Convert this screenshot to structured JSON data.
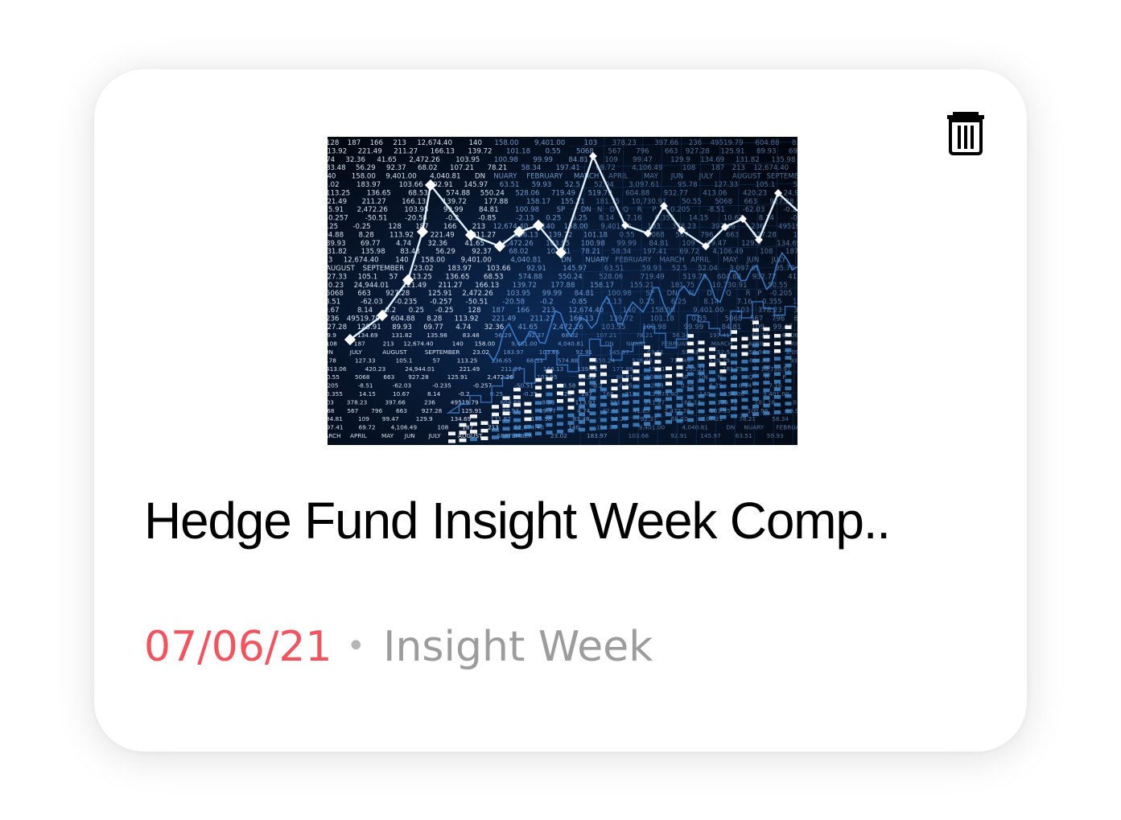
{
  "card": {
    "title": "Hedge Fund Insight Week Comp..",
    "date": "07/06/21",
    "separator": "•",
    "source": "Insight Week",
    "date_color": "#f4535e",
    "source_color": "#9c9c9c"
  },
  "actions": {
    "delete_icon": "trash-icon"
  },
  "thumbnail": {
    "subject": "stock-market-chart-image",
    "ticker_text": [
      "128",
      "187",
      "166",
      "213",
      "12,674.40",
      "140",
      "158.00",
      "9,401.00",
      "103",
      "378.23",
      "397.66",
      "236",
      "49519.79",
      "604.88",
      "8.28",
      "113.92",
      "221.49",
      "211.27",
      "166.13",
      "139.72",
      "101.18",
      "0.55",
      "5068",
      "567",
      "796",
      "663",
      "927.28",
      "125.91",
      "89.93",
      "69.77",
      "4.74",
      "32.36",
      "41.65",
      "2,472.26",
      "103.95",
      "100.98",
      "99.99",
      "84.81",
      "109",
      "99.47",
      "129.9",
      "134.69",
      "131.82",
      "135.98",
      "83.48",
      "56.29",
      "92.37",
      "68.02",
      "107.21",
      "78.21",
      "58.34",
      "197.41",
      "69.72",
      "4,106.49",
      "108",
      "187",
      "213",
      "12,674.40",
      "140",
      "158.00",
      "9,401.00",
      "4,040.81",
      "DN",
      "NUARY",
      "FEBRUARY",
      "MARCH",
      "APRIL",
      "MAY",
      "JUN",
      "JULY",
      "AUGUST",
      "SEPTEMBER",
      "23.02",
      "183.97",
      "103.66",
      "92.91",
      "145.97",
      "63.51",
      "59.93",
      "52.5",
      "52.04",
      "3,097.61",
      "95.78",
      "127.33",
      "105.1",
      "57",
      "113.25",
      "136.65",
      "68.53",
      "574.88",
      "550.24",
      "528.06",
      "719.49",
      "519.79",
      "604.88",
      "932.77",
      "413.06",
      "420.23",
      "24,944.01",
      "221.49",
      "211.27",
      "166.13",
      "139.72",
      "177.88",
      "158.17",
      "155.21",
      "181.75",
      "10,730.91",
      "50.55",
      "5068",
      "663",
      "927.28",
      "125.91",
      "2,472.26",
      "103.95",
      "99.99",
      "84.81",
      "100.98",
      "SP",
      "DN",
      "N",
      "D",
      "Q",
      "R",
      "P",
      "-0.205",
      "-8.51",
      "-62.03",
      "-0.235",
      "-0.257",
      "-50.51",
      "-20.58",
      "-0.2",
      "-0.85",
      "-2.13",
      "0.25",
      "6.25",
      "8.14",
      "7.16",
      "0.355",
      "14.15",
      "10.67",
      "8.14",
      "-0.2",
      "0.25",
      "-0.25"
    ]
  }
}
